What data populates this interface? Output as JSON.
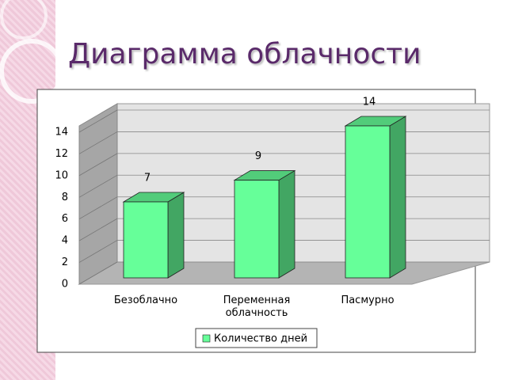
{
  "chart_data": {
    "type": "bar",
    "title": "Диаграмма облачности",
    "categories": [
      "Безоблачно",
      "Переменная облачность",
      "Пасмурно"
    ],
    "series": [
      {
        "name": "Количество дней",
        "color": "#66ff99",
        "values": [
          7,
          9,
          14
        ]
      }
    ],
    "ylim": [
      0,
      14
    ],
    "yticks": [
      0,
      2,
      4,
      6,
      8,
      10,
      12,
      14
    ],
    "grid": true,
    "legend": "bottom"
  }
}
